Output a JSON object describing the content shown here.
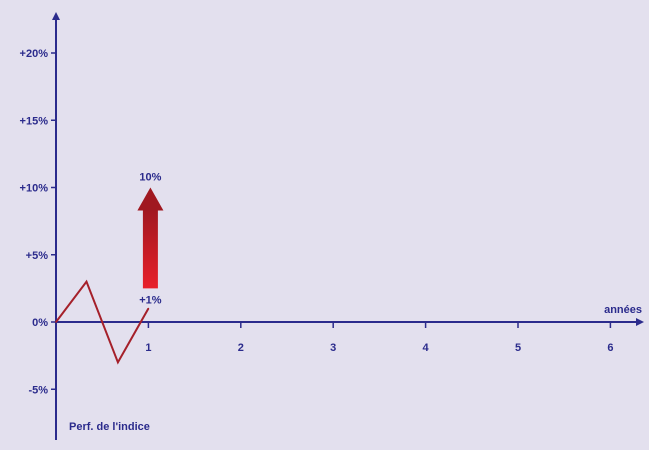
{
  "colors": {
    "background": "#e3e0ee",
    "axis": "#2b2b8c",
    "text": "#2b2b8c",
    "series": "#a5202a",
    "arrow_top": "#a01820",
    "arrow_bottom": "#e8202a"
  },
  "chart_data": {
    "type": "line",
    "title": "",
    "xlabel": "années",
    "ylabel": "",
    "xlim": [
      0,
      6.2
    ],
    "ylim": [
      -8.5,
      22.5
    ],
    "x_ticks": [
      1,
      2,
      3,
      4,
      5,
      6
    ],
    "x_tick_labels": [
      "1",
      "2",
      "3",
      "4",
      "5",
      "6"
    ],
    "y_ticks": [
      -5,
      0,
      5,
      10,
      15,
      20
    ],
    "y_tick_labels": [
      "-5%",
      "0%",
      "+5%",
      "+10%",
      "+15%",
      "+20%"
    ],
    "grid": false,
    "series": [
      {
        "x": [
          0,
          0.33,
          0.67,
          1
        ],
        "y": [
          0,
          3,
          -3,
          1
        ]
      }
    ],
    "arrow": {
      "x": 1,
      "from": 2.5,
      "to": 10,
      "label_top": "10%",
      "label_bottom": "+1%"
    },
    "legend_text": "Perf. de l'indice"
  }
}
